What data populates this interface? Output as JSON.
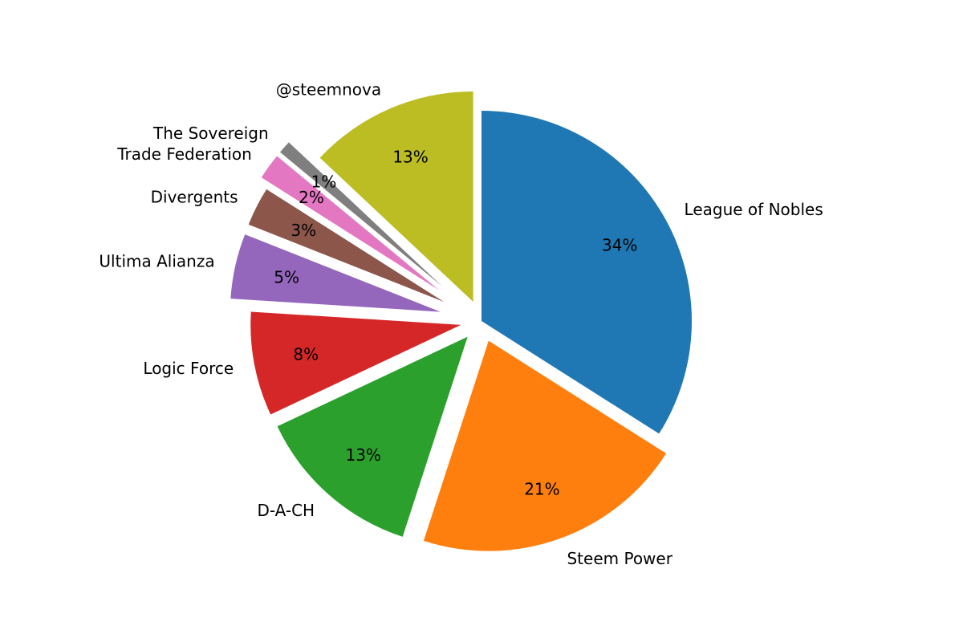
{
  "chart_data": {
    "type": "pie",
    "title": "",
    "start_angle_deg": 90,
    "direction": "clockwise",
    "autopct_format": "{p}%",
    "slices": [
      {
        "label": "League of Nobles",
        "percent": 34,
        "value": 34,
        "color": "#1f77b4",
        "explode": 0.0
      },
      {
        "label": "Steem Power",
        "percent": 21,
        "value": 21,
        "color": "#ff7f0e",
        "explode": 0.1
      },
      {
        "label": "D-A-CH",
        "percent": 13,
        "value": 13,
        "color": "#2ca02c",
        "explode": 0.1
      },
      {
        "label": "Logic Force",
        "percent": 8,
        "value": 8,
        "color": "#d62728",
        "explode": 0.1
      },
      {
        "label": "Ultima Alianza",
        "percent": 5,
        "value": 5,
        "color": "#9467bd",
        "explode": 0.2
      },
      {
        "label": "Divergents",
        "percent": 3,
        "value": 3,
        "color": "#8c564b",
        "explode": 0.2
      },
      {
        "label": "Trade Federation",
        "percent": 2,
        "value": 2,
        "color": "#e377c2",
        "explode": 0.25
      },
      {
        "label": "The Sovereign",
        "percent": 1,
        "value": 1,
        "color": "#7f7f7f",
        "explode": 0.25
      },
      {
        "label": "@steemnova",
        "percent": 13,
        "value": 13,
        "color": "#bcbd22",
        "explode": 0.1
      }
    ]
  }
}
